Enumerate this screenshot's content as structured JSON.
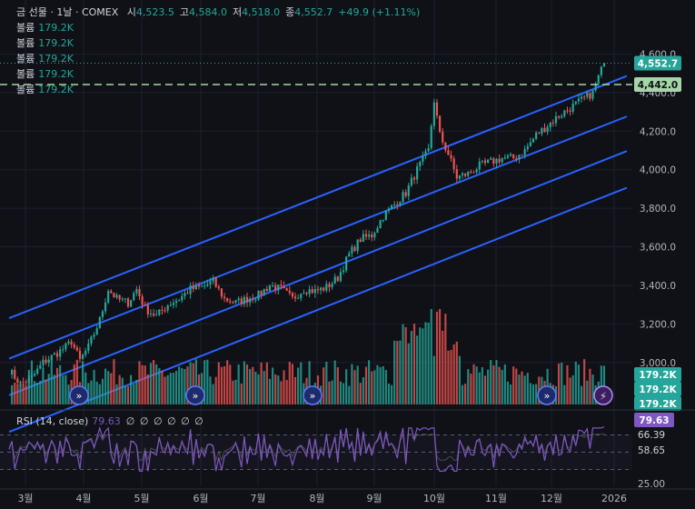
{
  "header": {
    "symbol": "금 선물 · 1날 · COMEX",
    "open_label": "시",
    "open": "4,523.5",
    "high_label": "고",
    "high": "4,584.0",
    "low_label": "저",
    "low": "4,518.0",
    "close_label": "종",
    "close": "4,552.7",
    "change": "+49.9 (+1.11%)"
  },
  "volume_legend": [
    {
      "label": "볼륨",
      "value": "179.2K"
    },
    {
      "label": "볼륨",
      "value": "179.2K"
    },
    {
      "label": "볼륨",
      "value": "179.2K"
    },
    {
      "label": "볼륨",
      "value": "179.2K"
    },
    {
      "label": "볼륨",
      "value": "179.2K"
    }
  ],
  "price_badges": {
    "last": "4,552.7",
    "hline": "4,442.0"
  },
  "volume_badges": [
    "179.2K",
    "179.2K",
    "179.2K"
  ],
  "rsi": {
    "title": "RSI (14, close)",
    "value": "79.63",
    "zeros": "∅ ∅ ∅ ∅ ∅ ∅",
    "badge_value": "79.63",
    "ma_value": "66.39",
    "other_value": "58.65",
    "axis_label": "25.00"
  },
  "colors": {
    "up": "#26a69a",
    "down": "#ef5350",
    "channel": "#2962ff",
    "rsi": "#7e57c2",
    "background": "#0f1116"
  },
  "chart_data": {
    "type": "candlestick",
    "y_axis": {
      "ticks": [
        3000,
        3200,
        3400,
        3600,
        3800,
        4000,
        4200,
        4400,
        4600
      ],
      "tick_labels": [
        "3,000.0",
        "3,200.0",
        "3,400.0",
        "3,600.0",
        "3,800.0",
        "4,000.0",
        "4,200.0",
        "4,400.0",
        "4,600.0"
      ]
    },
    "x_axis": {
      "labels": [
        "3월",
        "4월",
        "5월",
        "6월",
        "7월",
        "8월",
        "9월",
        "10월",
        "11월",
        "12월",
        "2026"
      ]
    },
    "price_path": [
      [
        0,
        2960
      ],
      [
        4,
        2890
      ],
      [
        8,
        2920
      ],
      [
        12,
        3000
      ],
      [
        16,
        3040
      ],
      [
        20,
        3080
      ],
      [
        22,
        3110
      ],
      [
        25,
        3010
      ],
      [
        28,
        3080
      ],
      [
        32,
        3220
      ],
      [
        35,
        3380
      ],
      [
        38,
        3330
      ],
      [
        42,
        3310
      ],
      [
        45,
        3380
      ],
      [
        48,
        3280
      ],
      [
        52,
        3240
      ],
      [
        56,
        3300
      ],
      [
        60,
        3330
      ],
      [
        64,
        3380
      ],
      [
        68,
        3390
      ],
      [
        72,
        3420
      ],
      [
        76,
        3330
      ],
      [
        80,
        3310
      ],
      [
        84,
        3330
      ],
      [
        88,
        3350
      ],
      [
        92,
        3400
      ],
      [
        96,
        3380
      ],
      [
        100,
        3330
      ],
      [
        104,
        3380
      ],
      [
        108,
        3370
      ],
      [
        112,
        3390
      ],
      [
        116,
        3440
      ],
      [
        120,
        3560
      ],
      [
        124,
        3640
      ],
      [
        128,
        3660
      ],
      [
        132,
        3760
      ],
      [
        136,
        3820
      ],
      [
        140,
        3880
      ],
      [
        144,
        4000
      ],
      [
        148,
        4100
      ],
      [
        150,
        4360
      ],
      [
        152,
        4180
      ],
      [
        155,
        4080
      ],
      [
        158,
        3960
      ],
      [
        162,
        3980
      ],
      [
        166,
        4020
      ],
      [
        170,
        4040
      ],
      [
        174,
        4060
      ],
      [
        178,
        4060
      ],
      [
        182,
        4100
      ],
      [
        186,
        4180
      ],
      [
        190,
        4230
      ],
      [
        194,
        4280
      ],
      [
        198,
        4320
      ],
      [
        202,
        4360
      ],
      [
        206,
        4400
      ],
      [
        208,
        4480
      ],
      [
        210,
        4552.7
      ]
    ],
    "channels": [
      {
        "x0": 0,
        "y0": 3230,
        "x1": 210,
        "y1": 4440
      },
      {
        "x0": 0,
        "y0": 3020,
        "x1": 210,
        "y1": 4230
      },
      {
        "x0": 0,
        "y0": 2830,
        "x1": 210,
        "y1": 4050
      },
      {
        "x0": 0,
        "y0": 2640,
        "x1": 210,
        "y1": 3860
      }
    ],
    "horizontal_line": 4442.0,
    "last_price": 4552.7
  }
}
